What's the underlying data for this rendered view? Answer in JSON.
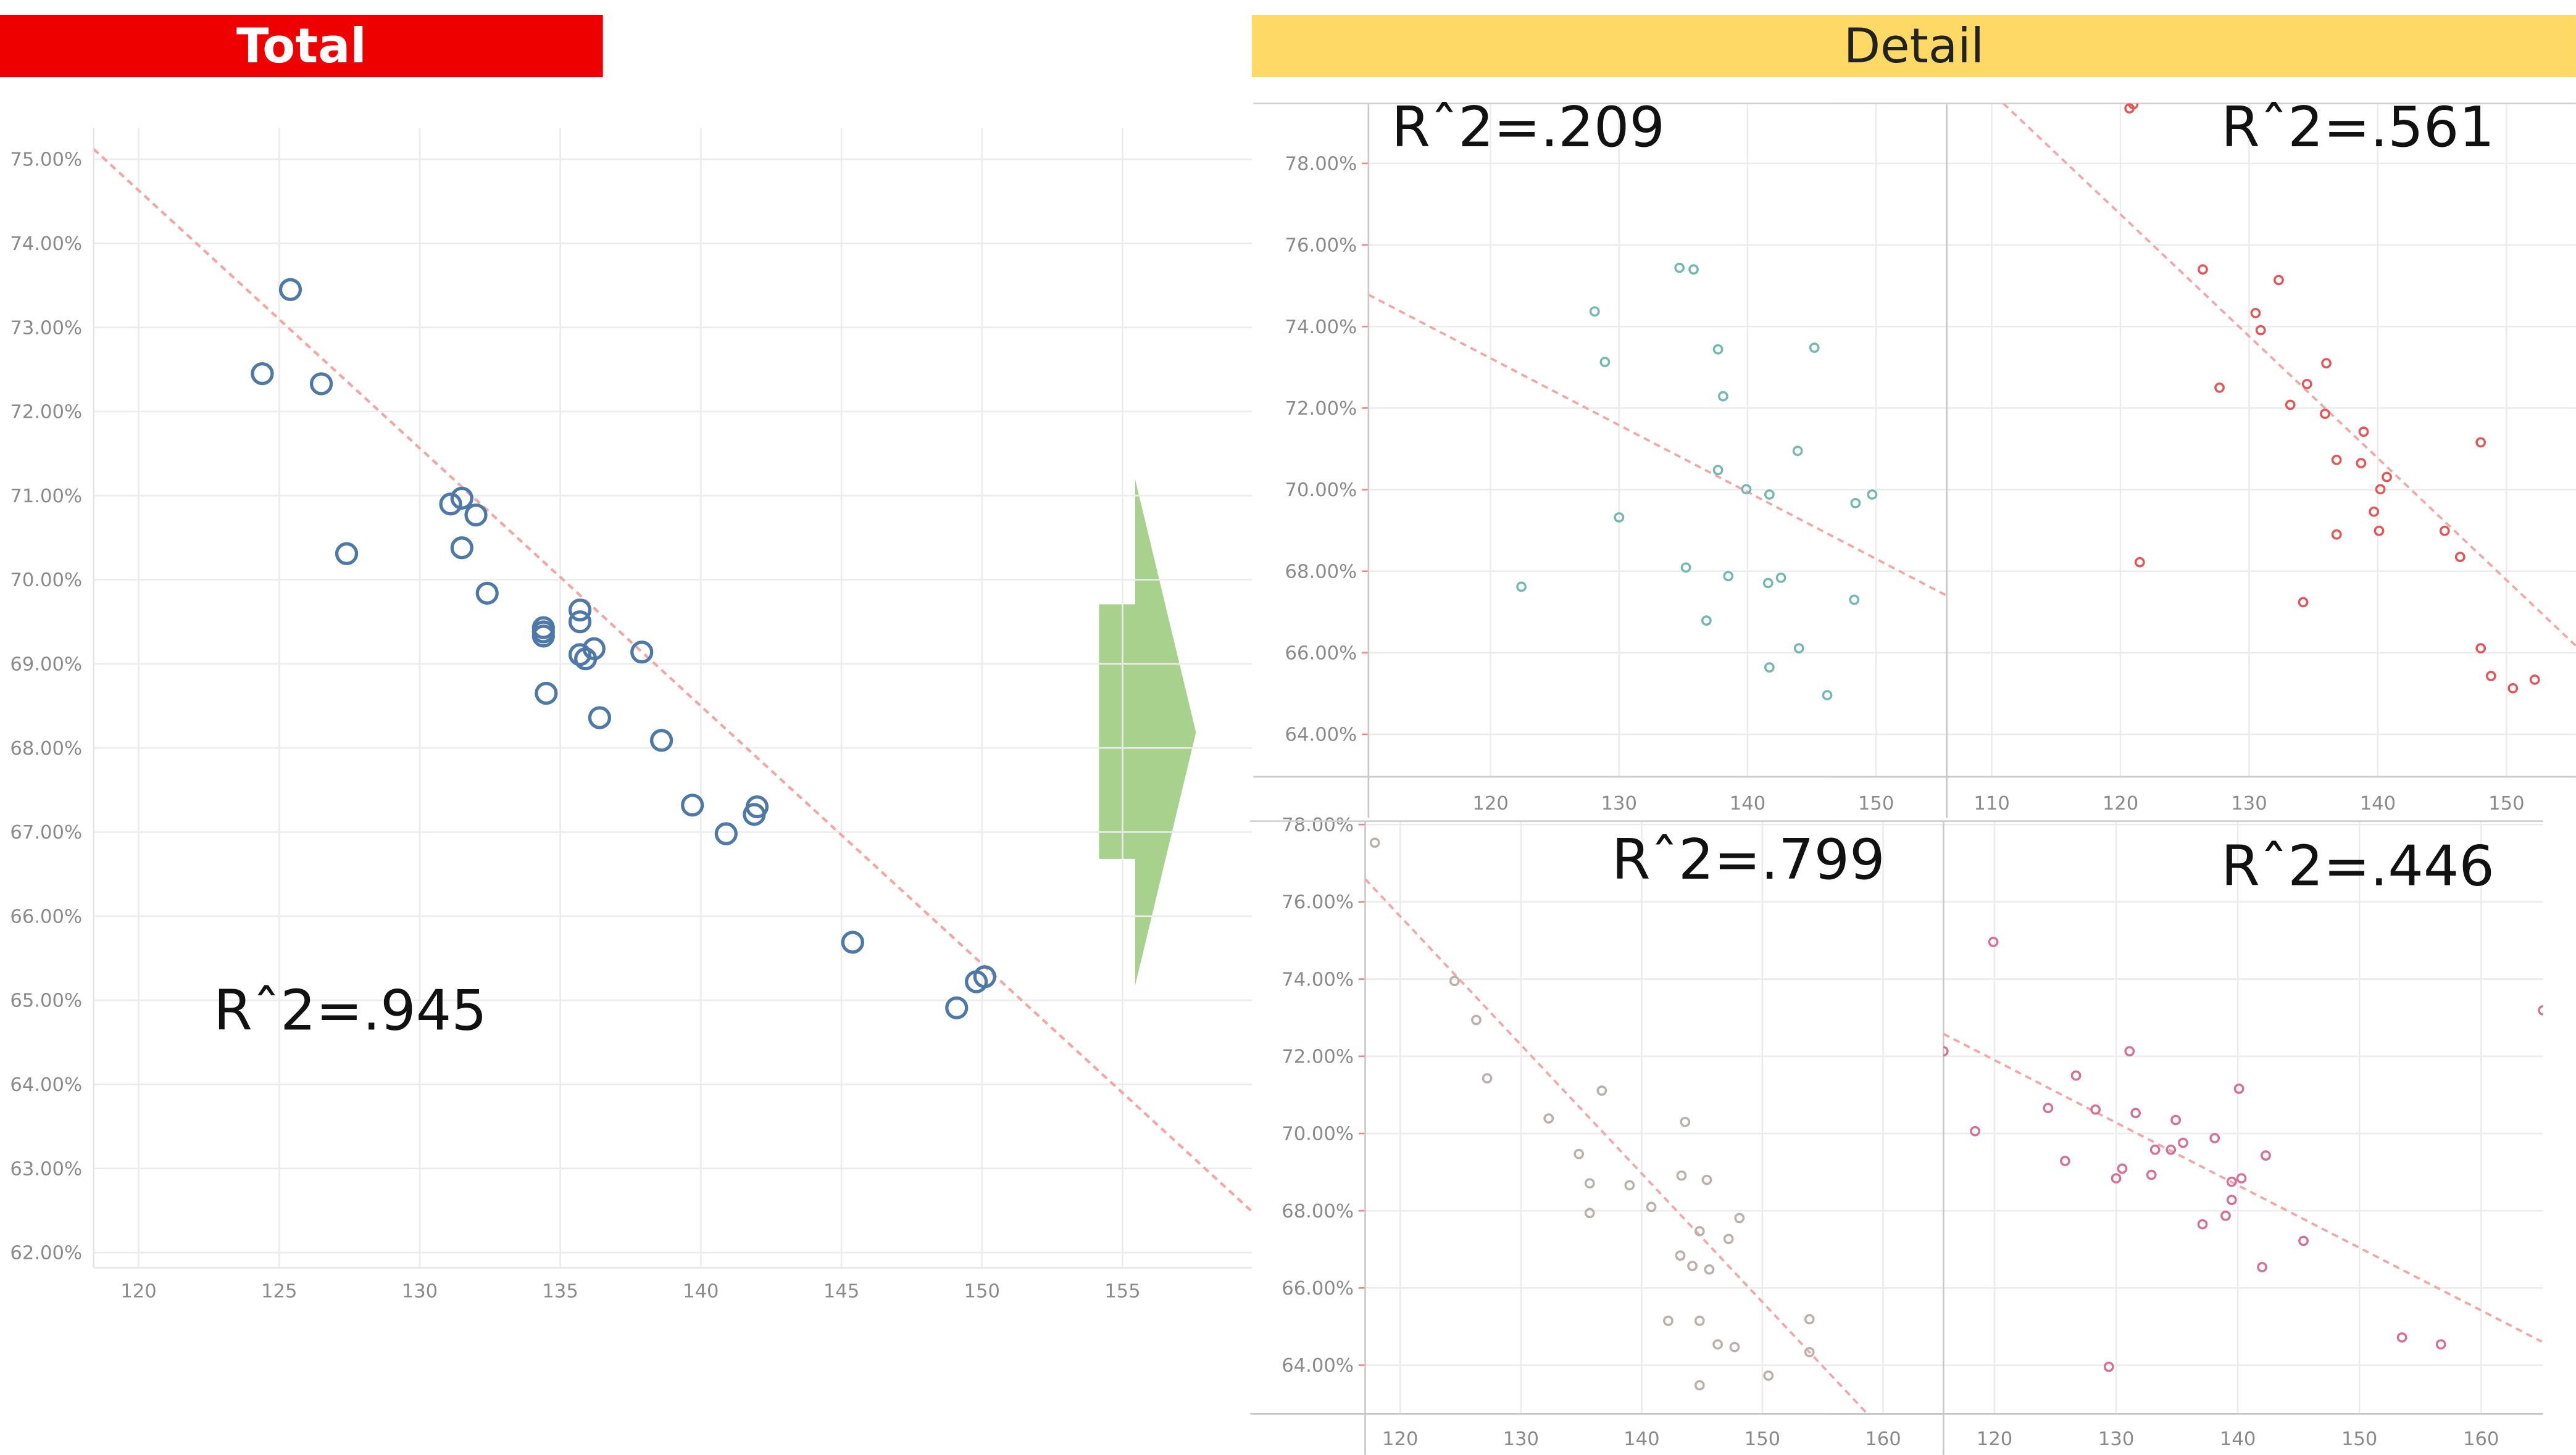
{
  "headers": {
    "total": "Total",
    "detail": "Detail"
  },
  "colors": {
    "total_header": "#EE0000",
    "detail_header": "#FFD966",
    "arrow": "#A9D18E",
    "trend": "#F2A7A7"
  },
  "arrow_icon": "right-arrow",
  "chart_data": [
    {
      "id": "total",
      "type": "scatter",
      "title": "",
      "r2_label": "Rˆ2=.945",
      "color": "#4E79A7",
      "marker": "hollow-circle",
      "xlim": [
        118.4,
        159.6
      ],
      "ylim": [
        61.82,
        75.37
      ],
      "x_ticks": [
        120,
        125,
        130,
        135,
        140,
        145,
        150,
        155
      ],
      "y_ticks": [
        62,
        63,
        64,
        65,
        66,
        67,
        68,
        69,
        70,
        71,
        72,
        73,
        74,
        75
      ],
      "y_format": "percent",
      "grid": true,
      "trend": [
        [
          118.4,
          75.12
        ],
        [
          159.6,
          62.49
        ]
      ],
      "points": [
        [
          125.4,
          73.45
        ],
        [
          124.4,
          72.45
        ],
        [
          126.5,
          72.33
        ],
        [
          127.4,
          70.31
        ],
        [
          131.1,
          70.9
        ],
        [
          131.5,
          70.97
        ],
        [
          132.0,
          70.77
        ],
        [
          131.5,
          70.38
        ],
        [
          132.4,
          69.84
        ],
        [
          134.4,
          69.43
        ],
        [
          134.4,
          69.38
        ],
        [
          134.4,
          69.33
        ],
        [
          135.7,
          69.64
        ],
        [
          135.7,
          69.5
        ],
        [
          136.2,
          69.18
        ],
        [
          135.7,
          69.11
        ],
        [
          135.9,
          69.06
        ],
        [
          137.9,
          69.14
        ],
        [
          134.5,
          68.65
        ],
        [
          136.4,
          68.36
        ],
        [
          138.6,
          68.09
        ],
        [
          139.7,
          67.32
        ],
        [
          140.9,
          66.98
        ],
        [
          142.0,
          67.3
        ],
        [
          141.9,
          67.21
        ],
        [
          145.4,
          65.69
        ],
        [
          149.1,
          64.91
        ],
        [
          149.8,
          65.22
        ],
        [
          150.1,
          65.28
        ]
      ]
    },
    {
      "id": "detail-top-left",
      "type": "scatter",
      "r2_label": "Rˆ2=.209",
      "color": "#76B7B2",
      "marker": "hollow-circle",
      "xlim": [
        110.5,
        155.5
      ],
      "ylim": [
        62.96,
        79.47
      ],
      "x_ticks": [
        120,
        130,
        140,
        150
      ],
      "y_ticks": [
        64,
        66,
        68,
        70,
        72,
        74,
        76,
        78
      ],
      "y_format": "percent",
      "grid": true,
      "trend": [
        [
          110.5,
          74.78
        ],
        [
          155.5,
          67.4
        ]
      ],
      "points": [
        [
          122.4,
          67.62
        ],
        [
          128.1,
          74.37
        ],
        [
          128.9,
          73.13
        ],
        [
          130.0,
          69.32
        ],
        [
          134.7,
          75.44
        ],
        [
          135.8,
          75.4
        ],
        [
          137.7,
          73.44
        ],
        [
          138.1,
          72.29
        ],
        [
          137.7,
          70.48
        ],
        [
          139.9,
          70.01
        ],
        [
          141.7,
          69.88
        ],
        [
          143.9,
          70.95
        ],
        [
          145.2,
          73.48
        ],
        [
          148.4,
          69.67
        ],
        [
          149.7,
          69.88
        ],
        [
          135.2,
          68.09
        ],
        [
          138.5,
          67.88
        ],
        [
          141.6,
          67.71
        ],
        [
          142.6,
          67.84
        ],
        [
          136.8,
          66.79
        ],
        [
          148.3,
          67.3
        ],
        [
          144.0,
          66.11
        ],
        [
          141.7,
          65.64
        ],
        [
          146.2,
          64.96
        ]
      ]
    },
    {
      "id": "detail-top-right",
      "type": "scatter",
      "r2_label": "Rˆ2=.561",
      "color": "#E15759",
      "marker": "hollow-circle",
      "xlim": [
        106.5,
        155.4
      ],
      "ylim": [
        62.96,
        79.47
      ],
      "x_ticks": [
        110,
        120,
        130,
        140,
        150
      ],
      "y_ticks": [
        64,
        66,
        68,
        70,
        72,
        74,
        76,
        78
      ],
      "y_format": "percent",
      "grid": true,
      "trend": [
        [
          110.9,
          79.47
        ],
        [
          155.4,
          66.17
        ]
      ],
      "points": [
        [
          120.7,
          79.35
        ],
        [
          121.0,
          79.45
        ],
        [
          126.4,
          75.4
        ],
        [
          132.3,
          75.14
        ],
        [
          130.5,
          74.33
        ],
        [
          130.9,
          73.91
        ],
        [
          127.7,
          72.5
        ],
        [
          136.0,
          73.1
        ],
        [
          134.5,
          72.59
        ],
        [
          133.2,
          72.08
        ],
        [
          135.9,
          71.86
        ],
        [
          138.9,
          71.42
        ],
        [
          148.0,
          71.16
        ],
        [
          136.8,
          70.73
        ],
        [
          138.7,
          70.65
        ],
        [
          140.7,
          70.31
        ],
        [
          140.2,
          70.01
        ],
        [
          139.7,
          69.46
        ],
        [
          140.1,
          68.99
        ],
        [
          136.8,
          68.9
        ],
        [
          145.2,
          68.99
        ],
        [
          146.4,
          68.35
        ],
        [
          121.5,
          68.22
        ],
        [
          134.2,
          67.24
        ],
        [
          148.0,
          66.11
        ],
        [
          148.8,
          65.43
        ],
        [
          150.5,
          65.13
        ],
        [
          152.2,
          65.34
        ]
      ]
    },
    {
      "id": "detail-bottom-left",
      "type": "scatter",
      "r2_label": "Rˆ2=.799",
      "color": "#BAB0AC",
      "marker": "hollow-circle",
      "xlim": [
        117.1,
        165.0
      ],
      "ylim": [
        62.74,
        78.09
      ],
      "x_ticks": [
        120,
        130,
        140,
        150,
        160
      ],
      "y_ticks": [
        64,
        66,
        68,
        70,
        72,
        74,
        76,
        78
      ],
      "y_format": "percent",
      "grid": true,
      "trend": [
        [
          117.1,
          76.59
        ],
        [
          158.7,
          62.74
        ]
      ],
      "points": [
        [
          117.9,
          77.53
        ],
        [
          124.5,
          73.95
        ],
        [
          126.3,
          72.94
        ],
        [
          127.2,
          71.43
        ],
        [
          132.3,
          70.39
        ],
        [
          136.7,
          71.11
        ],
        [
          143.6,
          70.3
        ],
        [
          134.8,
          69.47
        ],
        [
          135.7,
          68.71
        ],
        [
          139.0,
          68.66
        ],
        [
          143.3,
          68.91
        ],
        [
          145.4,
          68.8
        ],
        [
          135.7,
          67.94
        ],
        [
          140.8,
          68.1
        ],
        [
          144.8,
          67.47
        ],
        [
          148.1,
          67.81
        ],
        [
          147.2,
          67.27
        ],
        [
          143.2,
          66.84
        ],
        [
          144.2,
          66.57
        ],
        [
          145.6,
          66.48
        ],
        [
          142.2,
          65.15
        ],
        [
          144.8,
          65.15
        ],
        [
          153.9,
          65.19
        ],
        [
          146.3,
          64.54
        ],
        [
          147.7,
          64.47
        ],
        [
          153.9,
          64.34
        ],
        [
          150.5,
          63.73
        ],
        [
          144.8,
          63.48
        ]
      ]
    },
    {
      "id": "detail-bottom-right",
      "type": "scatter",
      "r2_label": "Rˆ2=.446",
      "color": "#D37295",
      "marker": "hollow-circle",
      "xlim": [
        115.8,
        165.1
      ],
      "ylim": [
        62.74,
        78.09
      ],
      "x_ticks": [
        120,
        130,
        140,
        150,
        160
      ],
      "y_ticks": [],
      "y_format": "percent",
      "grid": true,
      "trend": [
        [
          115.8,
          72.58
        ],
        [
          165.0,
          64.61
        ]
      ],
      "points": [
        [
          115.8,
          72.13
        ],
        [
          119.9,
          74.96
        ],
        [
          118.4,
          70.06
        ],
        [
          124.4,
          70.66
        ],
        [
          126.7,
          71.5
        ],
        [
          128.3,
          70.62
        ],
        [
          131.1,
          72.13
        ],
        [
          131.6,
          70.53
        ],
        [
          125.8,
          69.29
        ],
        [
          133.2,
          69.58
        ],
        [
          134.5,
          69.58
        ],
        [
          134.9,
          70.35
        ],
        [
          135.5,
          69.76
        ],
        [
          138.1,
          69.88
        ],
        [
          140.1,
          71.16
        ],
        [
          142.3,
          69.43
        ],
        [
          130.5,
          69.09
        ],
        [
          130.0,
          68.84
        ],
        [
          132.9,
          68.93
        ],
        [
          139.5,
          68.75
        ],
        [
          140.3,
          68.84
        ],
        [
          139.5,
          68.28
        ],
        [
          137.1,
          67.65
        ],
        [
          139.0,
          67.87
        ],
        [
          145.4,
          67.22
        ],
        [
          142.0,
          66.54
        ],
        [
          153.5,
          64.72
        ],
        [
          156.7,
          64.54
        ],
        [
          129.4,
          63.96
        ],
        [
          165.1,
          73.19
        ]
      ]
    }
  ]
}
